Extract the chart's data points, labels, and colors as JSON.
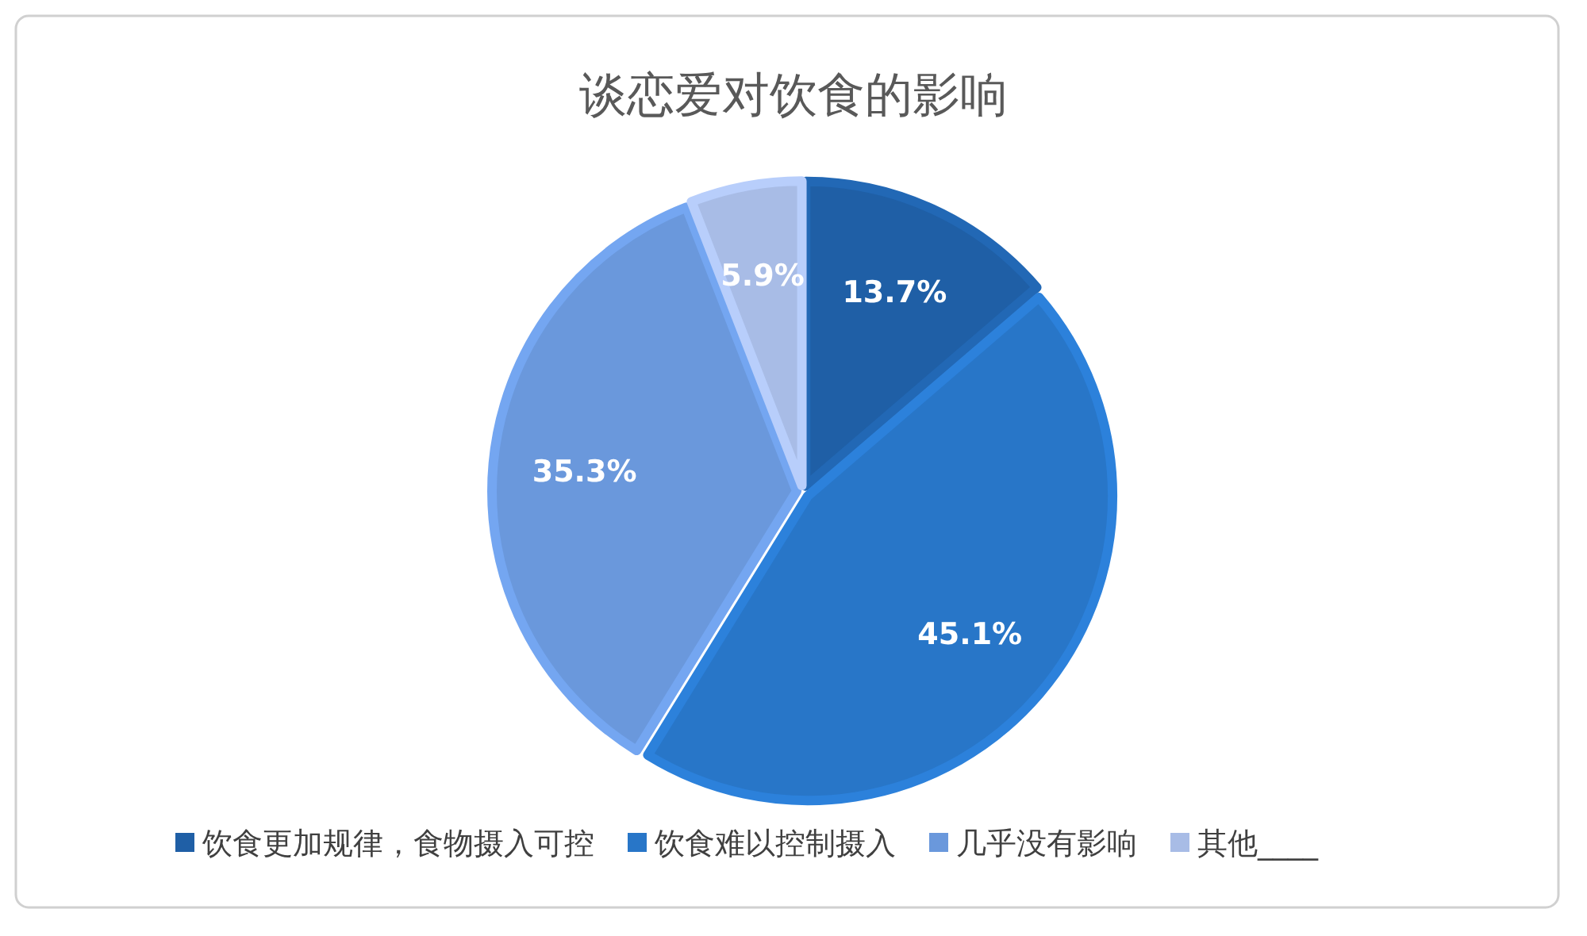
{
  "chart_data": {
    "type": "pie",
    "title": "谈恋爱对饮食的影响",
    "categories": [
      "饮食更加规律，食物摄入可控",
      "饮食难以控制摄入",
      "几乎没有影响",
      "其他____"
    ],
    "values": [
      13.7,
      45.1,
      35.3,
      5.9
    ],
    "colors": [
      "#1f5fa6",
      "#2876c8",
      "#6a98dc",
      "#a8bce6"
    ],
    "value_labels": [
      "13.7%",
      "45.1%",
      "35.3%",
      "5.9%"
    ],
    "legend": "bottom"
  }
}
